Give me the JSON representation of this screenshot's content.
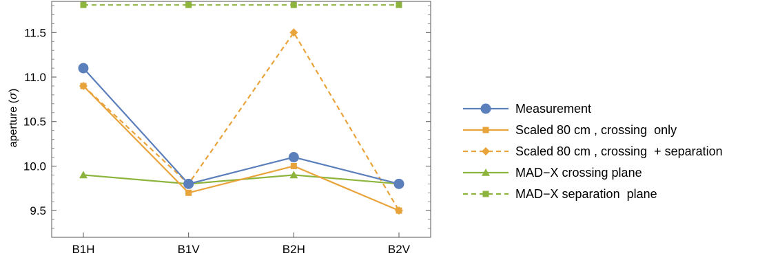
{
  "chart_data": {
    "type": "line",
    "categories": [
      "B1H",
      "B1V",
      "B2H",
      "B2V"
    ],
    "ylabel_text": "aperture (",
    "ylabel_symbol": "σ",
    "ylabel_close": ")",
    "ylim": [
      9.2,
      11.85
    ],
    "yticks": [
      {
        "value": 9.5,
        "label": "9.5"
      },
      {
        "value": 10.0,
        "label": "10.0"
      },
      {
        "value": 10.5,
        "label": "10.5"
      },
      {
        "value": 11.0,
        "label": "11.0"
      },
      {
        "value": 11.5,
        "label": "11.5"
      }
    ],
    "grid": false,
    "legend_position": "right",
    "series": [
      {
        "name": "Measurement",
        "values": [
          11.1,
          9.8,
          10.1,
          9.8
        ],
        "color": "#5B7FBB",
        "dashed": false,
        "marker": "circle"
      },
      {
        "name": "Scaled 80 cm , crossing  only",
        "values": [
          10.9,
          9.7,
          10.0,
          9.5
        ],
        "color": "#E8A33A",
        "dashed": false,
        "marker": "square"
      },
      {
        "name": "Scaled 80 cm , crossing  + separation",
        "values": [
          10.9,
          9.8,
          11.5,
          9.5
        ],
        "color": "#E8A33A",
        "dashed": true,
        "marker": "diamond"
      },
      {
        "name": "MAD−X crossing plane",
        "values": [
          9.9,
          9.8,
          9.9,
          9.8
        ],
        "color": "#8DB53D",
        "dashed": false,
        "marker": "triangle"
      },
      {
        "name": "MAD−X separation  plane",
        "values": [
          11.81,
          11.81,
          11.81,
          11.81
        ],
        "color": "#8DB53D",
        "dashed": true,
        "marker": "square"
      }
    ]
  }
}
